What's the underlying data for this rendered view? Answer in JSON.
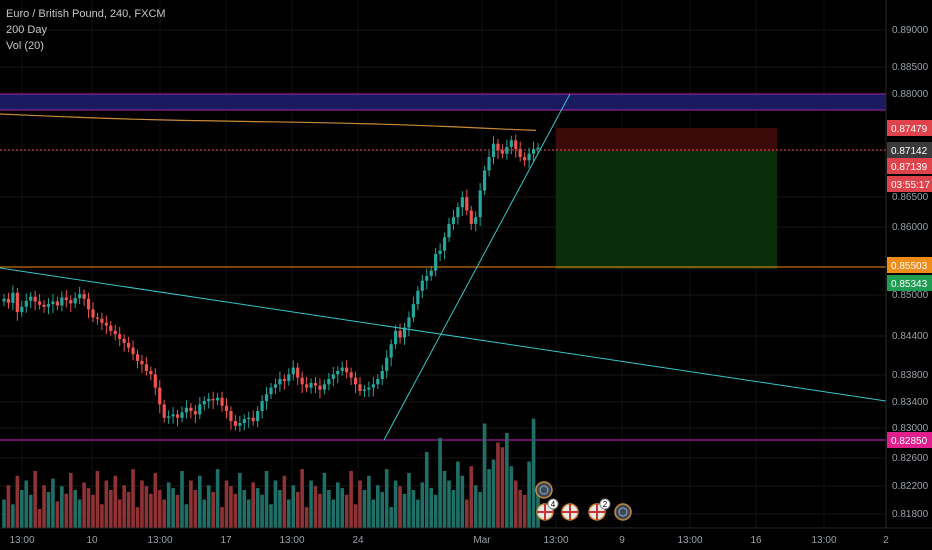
{
  "legend": {
    "symbol": "Euro / British Pound, 240, FXCM",
    "ma": "200 Day",
    "vol": "Vol (20)"
  },
  "price_axis": {
    "ticks": [
      "0.89000",
      "0.88500",
      "0.88000",
      "0.86500",
      "0.86000",
      "0.85000",
      "0.84400",
      "0.83800",
      "0.83400",
      "0.83000",
      "0.82600",
      "0.82200",
      "0.81800"
    ],
    "badges": [
      {
        "label": "0.87479",
        "color": "#e0424c"
      },
      {
        "label": "0.87142",
        "color": "#3a3a3a"
      },
      {
        "label": "0.87139",
        "color": "#e0424c"
      },
      {
        "label": "03:55:17",
        "color": "#e0424c"
      },
      {
        "label": "0.85503",
        "color": "#f08c1a"
      },
      {
        "label": "0.85343",
        "color": "#1e9c50"
      },
      {
        "label": "0.82850",
        "color": "#e21e8c"
      }
    ]
  },
  "time_axis": {
    "ticks": [
      "13:00",
      "10",
      "13:00",
      "17",
      "13:00",
      "24",
      "Mar",
      "13:00",
      "9",
      "13:00",
      "16",
      "13:00",
      "2"
    ]
  },
  "events": {
    "badge_counts": [
      "4",
      "2"
    ],
    "labels": [
      "UK",
      "UK",
      "EU"
    ]
  },
  "colors": {
    "up": "#26a69a",
    "down": "#ef5350",
    "trendline": "#35c6c6",
    "ma": "#c98a3b",
    "resistance_band": "#1a1a60",
    "resistance_line": "#b020b0",
    "support_line": "#d020c8",
    "stop_zone": "#3d0a0a",
    "target_zone": "#0a2e0a",
    "orange_line": "#f08c1a"
  },
  "chart_data": {
    "type": "candlestick",
    "title": "Euro / British Pound, 240, FXCM",
    "indicators": [
      "200 Day",
      "Vol (20)"
    ],
    "ylim": [
      0.816,
      0.892
    ],
    "levels": {
      "resistance": 0.8792,
      "current": 0.87142,
      "orange": 0.85503,
      "support": 0.8285
    },
    "position_tool": {
      "entry": 0.8714,
      "stop": 0.8748,
      "target": 0.855
    },
    "closes": [
      0.8488,
      0.8482,
      0.8497,
      0.8468,
      0.8476,
      0.8485,
      0.8491,
      0.8484,
      0.8479,
      0.8476,
      0.848,
      0.8484,
      0.8478,
      0.849,
      0.8486,
      0.8481,
      0.8489,
      0.8495,
      0.8488,
      0.8472,
      0.846,
      0.8458,
      0.8452,
      0.8448,
      0.844,
      0.8435,
      0.8428,
      0.8422,
      0.8415,
      0.8405,
      0.8395,
      0.839,
      0.838,
      0.8375,
      0.8355,
      0.833,
      0.831,
      0.8312,
      0.8315,
      0.831,
      0.8318,
      0.8325,
      0.832,
      0.8315,
      0.833,
      0.8335,
      0.8338,
      0.8336,
      0.834,
      0.8328,
      0.832,
      0.8305,
      0.8298,
      0.8302,
      0.8308,
      0.831,
      0.8305,
      0.832,
      0.8335,
      0.8345,
      0.8355,
      0.836,
      0.8368,
      0.8365,
      0.8375,
      0.8385,
      0.837,
      0.836,
      0.8355,
      0.8362,
      0.8358,
      0.8352,
      0.836,
      0.8368,
      0.8375,
      0.838,
      0.8385,
      0.8378,
      0.837,
      0.836,
      0.835,
      0.8352,
      0.8355,
      0.836,
      0.8368,
      0.838,
      0.84,
      0.842,
      0.844,
      0.843,
      0.8445,
      0.846,
      0.848,
      0.85,
      0.8515,
      0.8522,
      0.853,
      0.8555,
      0.856,
      0.858,
      0.86,
      0.861,
      0.8625,
      0.864,
      0.862,
      0.86,
      0.861,
      0.865,
      0.868,
      0.87,
      0.872,
      0.871,
      0.8705,
      0.8715,
      0.8725,
      0.8712,
      0.87,
      0.8695,
      0.8705,
      0.8712,
      0.8714
    ],
    "volumes": [
      30,
      45,
      25,
      55,
      40,
      50,
      35,
      60,
      20,
      45,
      38,
      52,
      28,
      44,
      36,
      58,
      40,
      30,
      48,
      42,
      35,
      60,
      25,
      50,
      40,
      55,
      30,
      45,
      38,
      62,
      22,
      50,
      44,
      36,
      58,
      40,
      30,
      48,
      42,
      35,
      60,
      25,
      50,
      40,
      55,
      30,
      45,
      38,
      62,
      22,
      50,
      44,
      36,
      58,
      40,
      30,
      48,
      42,
      35,
      60,
      25,
      50,
      40,
      55,
      30,
      45,
      38,
      62,
      22,
      50,
      44,
      36,
      58,
      40,
      30,
      48,
      42,
      35,
      60,
      25,
      50,
      40,
      55,
      30,
      45,
      38,
      62,
      22,
      50,
      44,
      36,
      58,
      40,
      30,
      48,
      80,
      42,
      35,
      95,
      60,
      50,
      40,
      70,
      55,
      30,
      65,
      45,
      38,
      110,
      62,
      72,
      90,
      85,
      100,
      65,
      50,
      40,
      35,
      70,
      115,
      45
    ]
  }
}
